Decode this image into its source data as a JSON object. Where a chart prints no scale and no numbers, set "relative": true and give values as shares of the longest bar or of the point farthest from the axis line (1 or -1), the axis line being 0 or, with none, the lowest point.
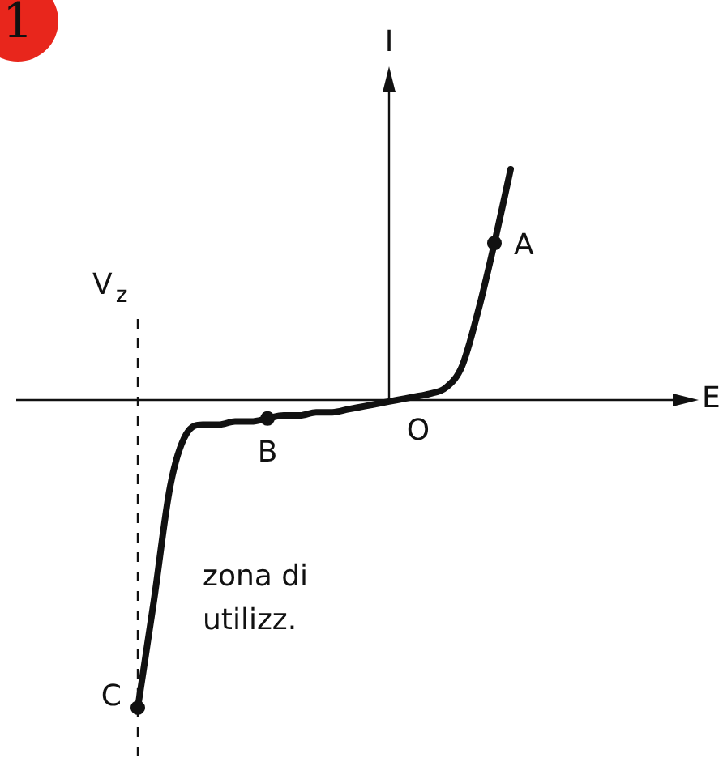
{
  "chart_data": {
    "type": "line",
    "relative": true,
    "ylabel": "I",
    "marker": "none",
    "line_style": "solid",
    "categories": [
      null,
      null,
      null,
      null,
      null,
      null,
      null,
      null,
      null,
      null,
      null,
      null,
      null,
      null,
      null,
      null,
      null,
      null,
      null,
      null,
      null,
      null,
      null,
      null
    ],
    "series": [
      {
        "color": "#111111",
        "values": [
          -1.0,
          -0.65,
          -0.28,
          -0.11,
          -0.08,
          -0.08,
          -0.07,
          -0.07,
          -0.06,
          -0.05,
          -0.05,
          -0.04,
          -0.04,
          -0.03,
          -0.02,
          -0.01,
          0,
          0.01,
          0.02,
          0.04,
          0.11,
          0.29,
          0.51,
          0.75
        ]
      }
    ],
    "annotations": [
      "A",
      "B",
      "C",
      "O",
      "V$_{z}$",
      "zona di utilizz.",
      "1",
      "E"
    ]
  }
}
